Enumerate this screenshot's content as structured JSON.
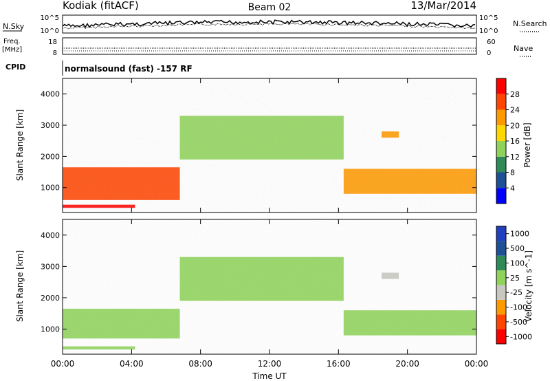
{
  "header": {
    "station": "Kodiak (fitACF)",
    "beam": "Beam 02",
    "date": "13/Mar/2014"
  },
  "sky_panel": {
    "left_label": "N.Sky",
    "right_label": "N.Search",
    "left_ticks": [
      "10^5",
      "10^0"
    ],
    "right_ticks": [
      "10^5",
      "10^0"
    ]
  },
  "freq_panel": {
    "left_label_1": "Freq.",
    "left_label_2": "[MHz]",
    "left_ticks": [
      "18",
      "8"
    ],
    "right_ticks": [
      "60",
      "0"
    ],
    "right_label": "Nave",
    "cpid_label": "CPID",
    "cpid_text": "normalsound (fast) -157 RF"
  },
  "x_axis": {
    "label": "Time UT",
    "ticks": [
      "00:00",
      "04:00",
      "08:00",
      "12:00",
      "16:00",
      "20:00",
      "00:00"
    ]
  },
  "colors": {
    "power_scale": [
      "#0000ff",
      "#1e5096",
      "#2e8b57",
      "#8fd35a",
      "#ffd700",
      "#ff9900",
      "#ff4500",
      "#ff0000"
    ],
    "velocity_scale": [
      "#ff0000",
      "#ff4500",
      "#ff9900",
      "#c8c8c0",
      "#8fd35a",
      "#2e8b57",
      "#1e5096",
      "#2040c0"
    ]
  },
  "chart_data": [
    {
      "type": "heatmap",
      "ylabel": "Slant Range [km]",
      "yticks": [
        "4000",
        "3000",
        "2000",
        "1000"
      ],
      "ylim": [
        200,
        4500
      ],
      "xlim": [
        0,
        24
      ],
      "colorbar_label": "Power [dB]",
      "colorbar_ticks": [
        "28",
        "24",
        "20",
        "16",
        "12",
        "8",
        "4"
      ],
      "clim": [
        0,
        32
      ],
      "regions": [
        {
          "t": [
            0,
            6.8
          ],
          "r": [
            600,
            1650
          ],
          "value": 24
        },
        {
          "t": [
            0,
            4.2
          ],
          "r": [
            350,
            450
          ],
          "value": 30
        },
        {
          "t": [
            6.8,
            16.3
          ],
          "r": [
            1900,
            3300
          ],
          "value": 14
        },
        {
          "t": [
            16.3,
            24
          ],
          "r": [
            800,
            1600
          ],
          "value": 22
        },
        {
          "t": [
            18.5,
            19.5
          ],
          "r": [
            2600,
            2800
          ],
          "value": 20
        }
      ]
    },
    {
      "type": "heatmap",
      "ylabel": "Slant Range [km]",
      "yticks": [
        "4000",
        "3000",
        "2000",
        "1000"
      ],
      "ylim": [
        200,
        4500
      ],
      "xlim": [
        0,
        24
      ],
      "colorbar_label": "Velocity [m s^-1]",
      "colorbar_ticks": [
        "1000",
        "500",
        "100",
        "25",
        "-25",
        "-100",
        "-500",
        "-1000"
      ],
      "clim": [
        -1200,
        1200
      ],
      "regions": [
        {
          "t": [
            0,
            6.8
          ],
          "r": [
            700,
            1650
          ],
          "value": 0
        },
        {
          "t": [
            0,
            4.2
          ],
          "r": [
            350,
            450
          ],
          "value": 0
        },
        {
          "t": [
            6.8,
            16.3
          ],
          "r": [
            1900,
            3300
          ],
          "value": 0
        },
        {
          "t": [
            16.3,
            24
          ],
          "r": [
            800,
            1600
          ],
          "value": 0
        },
        {
          "t": [
            18.5,
            19.5
          ],
          "r": [
            2600,
            2800
          ],
          "value": -150
        }
      ]
    }
  ]
}
